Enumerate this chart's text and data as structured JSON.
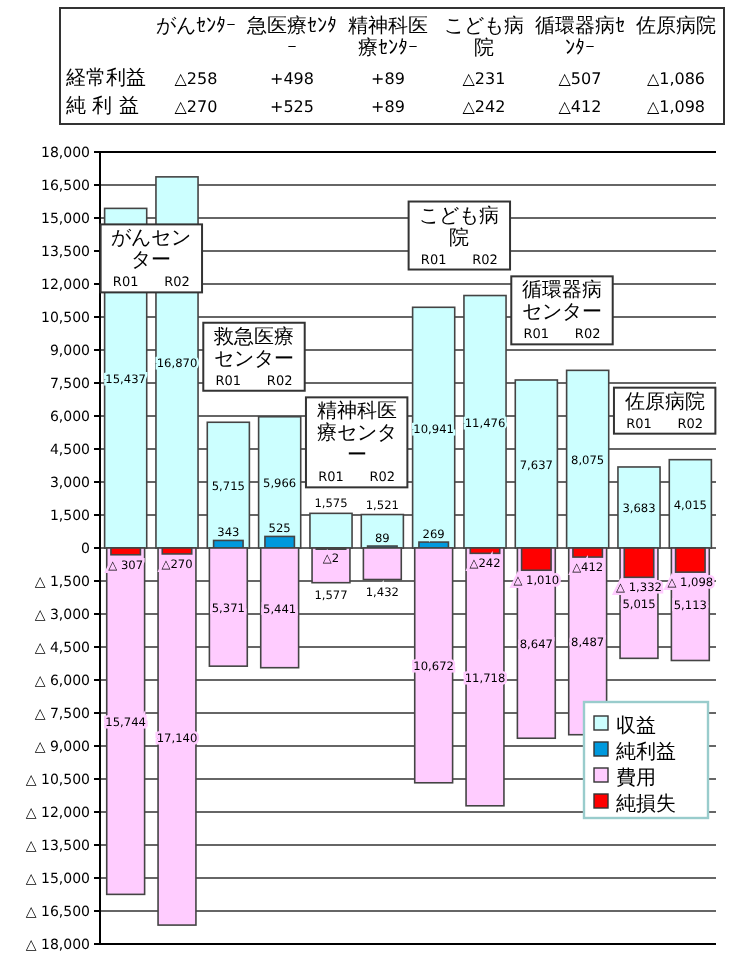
{
  "chart_data": {
    "type": "bar",
    "categories": [
      "R01",
      "R02",
      "R01",
      "R02",
      "R01",
      "R02",
      "R01",
      "R02",
      "R01",
      "R02",
      "R01",
      "R02"
    ],
    "series": [
      {
        "name": "収益",
        "color": "#ccffff",
        "values": [
          15437,
          16870,
          5715,
          5966,
          1575,
          1521,
          10941,
          11476,
          7637,
          8075,
          3683,
          4015
        ],
        "value_labels": [
          "15,437",
          "16,870",
          "5,715",
          "5,966",
          "1,575",
          "1,521",
          "10,941",
          "11,476",
          "7,637",
          "8,075",
          "3,683",
          "4,015"
        ]
      },
      {
        "name": "純利益",
        "color": "#0099dd",
        "values": [
          null,
          null,
          343,
          525,
          null,
          89,
          269,
          null,
          null,
          null,
          null,
          null
        ],
        "value_labels": [
          null,
          null,
          "343",
          "525",
          null,
          "89",
          "269",
          null,
          null,
          null,
          null,
          null
        ]
      },
      {
        "name": "費用",
        "color": "#ffccff",
        "base": [
          -15744,
          -17140,
          -5371,
          -5441,
          -1577,
          -1432,
          -10672,
          -11718,
          -8647,
          -8487,
          -5015,
          -5113
        ],
        "values": [
          15744,
          17140,
          5371,
          5441,
          1577,
          1432,
          10672,
          11718,
          8647,
          8487,
          5015,
          5113
        ],
        "value_labels": [
          "15,744",
          "17,140",
          "5,371",
          "5,441",
          "1,577",
          "1,432",
          "10,672",
          "11,718",
          "8,647",
          "8,487",
          "5,015",
          "5,113"
        ]
      },
      {
        "name": "純損失",
        "color": "#ff0000",
        "base": [
          -307,
          -270,
          null,
          null,
          -2,
          null,
          null,
          -242,
          -1010,
          -412,
          -1332,
          -1098
        ],
        "values": [
          307,
          270,
          null,
          null,
          2,
          null,
          null,
          242,
          1010,
          412,
          1332,
          1098
        ],
        "value_labels": [
          "△ 307",
          "△270",
          null,
          null,
          "△2",
          null,
          null,
          "△242",
          "△ 1,010",
          "△412",
          "△ 1,332",
          "△ 1,098"
        ]
      }
    ],
    "ylim": [
      -18000,
      18000
    ],
    "yticks": [
      {
        "value": -18000,
        "label": "△ 18,000"
      },
      {
        "value": -16500,
        "label": "△ 16,500"
      },
      {
        "value": -15000,
        "label": "△ 15,000"
      },
      {
        "value": -13500,
        "label": "△ 13,500"
      },
      {
        "value": -12000,
        "label": "△ 12,000"
      },
      {
        "value": -10500,
        "label": "△ 10,500"
      },
      {
        "value": -9000,
        "label": "△ 9,000"
      },
      {
        "value": -7500,
        "label": "△ 7,500"
      },
      {
        "value": -6000,
        "label": "△ 6,000"
      },
      {
        "value": -4500,
        "label": "△ 4,500"
      },
      {
        "value": -3000,
        "label": "△ 3,000"
      },
      {
        "value": -1500,
        "label": "△ 1,500"
      },
      0,
      {
        "value": 1500,
        "label": "1,500"
      },
      {
        "value": 3000,
        "label": "3,000"
      },
      {
        "value": 4500,
        "label": "4,500"
      },
      {
        "value": 6000,
        "label": "6,000"
      },
      {
        "value": 7500,
        "label": "7,500"
      },
      {
        "value": 9000,
        "label": "9,000"
      },
      {
        "value": 10500,
        "label": "10,500"
      },
      {
        "value": 12000,
        "label": "12,000"
      },
      {
        "value": 13500,
        "label": "13,500"
      },
      {
        "value": 15000,
        "label": "15,000"
      },
      {
        "value": 16500,
        "label": "16,500"
      },
      {
        "value": 18000,
        "label": "18,000"
      }
    ],
    "grid": "y",
    "legend": "right",
    "annotations": [
      "がんセンター",
      "救急医療センター",
      "精神科医療センター",
      "こども病院",
      "循環器病センター",
      "佐原病院",
      "がんｾﾝﾀｰ",
      "急医療ｾﾝﾀｰ",
      "精神科医療ｾﾝﾀｰ",
      "こども病院",
      "循環器病ｾﾝﾀｰ",
      "佐原病院",
      "経常利益",
      "純 利 益",
      "△258",
      "+498",
      "+89",
      "△231",
      "△507",
      "△1,086",
      "△270",
      "+525",
      "+89",
      "△242",
      "△412",
      "△1,098"
    ]
  }
}
